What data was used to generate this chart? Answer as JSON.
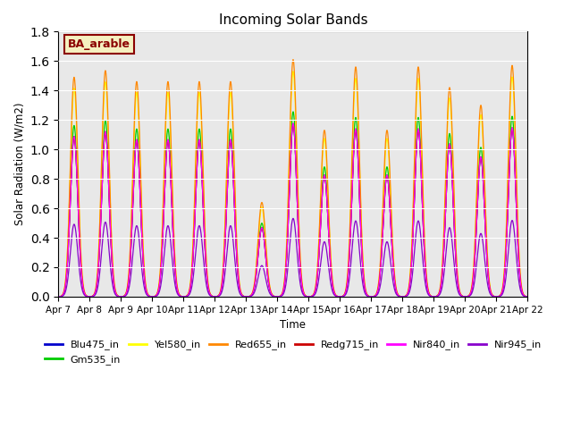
{
  "title": "Incoming Solar Bands",
  "xlabel": "Time",
  "ylabel": "Solar Radiation (W/m2)",
  "ylim": [
    0,
    1.8
  ],
  "annotation": "BA_arable",
  "background_color": "#e8e8e8",
  "series": [
    {
      "label": "Blu475_in",
      "color": "#0000cc",
      "scale": 0.73
    },
    {
      "label": "Gm535_in",
      "color": "#00cc00",
      "scale": 0.78
    },
    {
      "label": "Yel580_in",
      "color": "#ffff00",
      "scale": 0.95
    },
    {
      "label": "Red655_in",
      "color": "#ff8800",
      "scale": 1.0
    },
    {
      "label": "Redg715_in",
      "color": "#cc0000",
      "scale": 0.73
    },
    {
      "label": "Nir840_in",
      "color": "#ff00ff",
      "scale": 0.73
    },
    {
      "label": "Nir945_in",
      "color": "#8800cc",
      "scale": 0.33
    }
  ],
  "day_peaks": [
    1.49,
    1.535,
    1.46,
    1.46,
    1.46,
    1.46,
    0.64,
    1.61,
    1.13,
    1.56,
    1.13,
    1.56,
    1.42,
    1.3,
    1.57
  ],
  "xticklabels": [
    "Apr 7",
    "Apr 8",
    "Apr 9",
    "Apr 10",
    "Apr 11",
    "Apr 12",
    "Apr 13",
    "Apr 14",
    "Apr 15",
    "Apr 16",
    "Apr 17",
    "Apr 18",
    "Apr 19",
    "Apr 20",
    "Apr 21",
    "Apr 22"
  ],
  "points_per_day": 200,
  "n_days": 15
}
